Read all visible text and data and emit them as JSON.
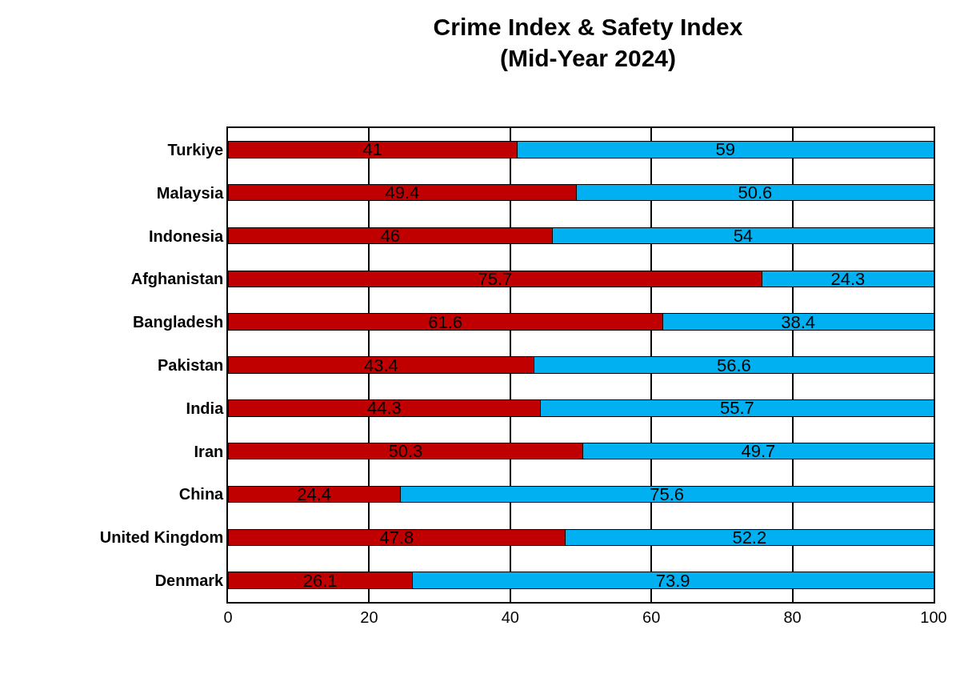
{
  "chart_data": {
    "type": "bar",
    "orientation": "horizontal",
    "stacked": true,
    "title": "Crime Index & Safety Index\n(Mid-Year 2024)",
    "categories": [
      "Turkiye",
      "Malaysia",
      "Indonesia",
      "Afghanistan",
      "Bangladesh",
      "Pakistan",
      "India",
      "Iran",
      "China",
      "United Kingdom",
      "Denmark"
    ],
    "series": [
      {
        "color": "#c00000",
        "values": [
          41,
          49.4,
          46,
          75.7,
          61.6,
          43.4,
          44.3,
          50.3,
          24.4,
          47.8,
          26.1
        ]
      },
      {
        "color": "#00b0f0",
        "values": [
          59,
          50.6,
          54,
          24.3,
          38.4,
          56.6,
          55.7,
          49.7,
          75.6,
          52.2,
          73.9
        ]
      }
    ],
    "xlim": [
      0,
      100
    ],
    "xticks": [
      0,
      20,
      40,
      60,
      80,
      100
    ],
    "grid": "x",
    "data_labels": true
  }
}
